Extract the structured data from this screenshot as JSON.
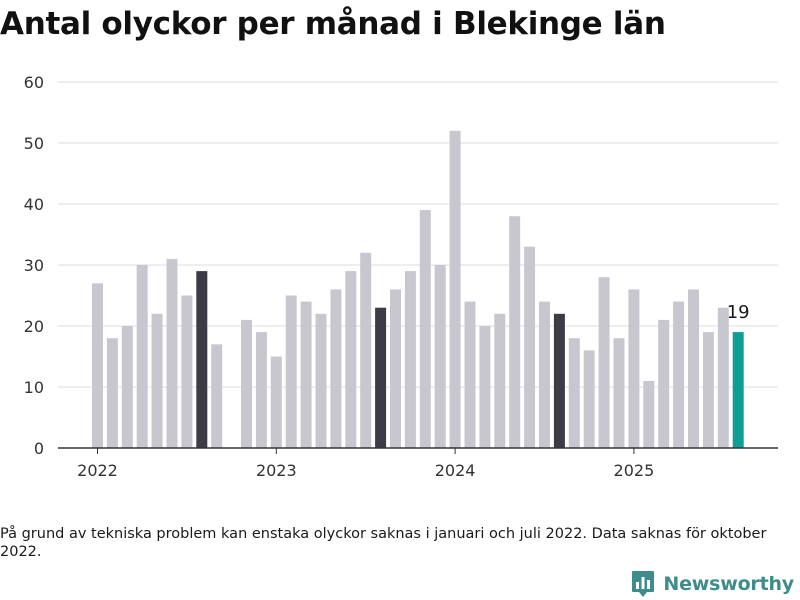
{
  "title": "Antal olyckor per månad i Blekinge län",
  "footnote": "På grund av tekniska problem kan enstaka olyckor saknas i januari och juli 2022. Data saknas för oktober 2022.",
  "brand": {
    "name": "Newsworthy",
    "icon": "bar-chart-logo-icon",
    "color": "#3e8d8a"
  },
  "chart_data": {
    "type": "bar",
    "title": "Antal olyckor per månad i Blekinge län",
    "xlabel": "",
    "ylabel": "",
    "ylim": [
      0,
      60
    ],
    "yticks": [
      0,
      10,
      20,
      30,
      40,
      50,
      60
    ],
    "grid": true,
    "legend": "none",
    "year_ticks": [
      {
        "label": "2022",
        "at": "2022-01"
      },
      {
        "label": "2023",
        "at": "2023-01"
      },
      {
        "label": "2024",
        "at": "2024-01"
      },
      {
        "label": "2025",
        "at": "2025-01"
      }
    ],
    "colors": {
      "default": "#c8c7d0",
      "august": "#3c3b46",
      "latest": "#0f9e96"
    },
    "data_labels": [
      {
        "month": "2025-08",
        "label": "19"
      }
    ],
    "bars": [
      {
        "month": "2022-01",
        "value": 27,
        "highlight": "default"
      },
      {
        "month": "2022-02",
        "value": 18,
        "highlight": "default"
      },
      {
        "month": "2022-03",
        "value": 20,
        "highlight": "default"
      },
      {
        "month": "2022-04",
        "value": 30,
        "highlight": "default"
      },
      {
        "month": "2022-05",
        "value": 22,
        "highlight": "default"
      },
      {
        "month": "2022-06",
        "value": 31,
        "highlight": "default"
      },
      {
        "month": "2022-07",
        "value": 25,
        "highlight": "default"
      },
      {
        "month": "2022-08",
        "value": 29,
        "highlight": "august"
      },
      {
        "month": "2022-09",
        "value": 17,
        "highlight": "default"
      },
      {
        "month": "2022-10",
        "value": null,
        "highlight": "default"
      },
      {
        "month": "2022-11",
        "value": 21,
        "highlight": "default"
      },
      {
        "month": "2022-12",
        "value": 19,
        "highlight": "default"
      },
      {
        "month": "2023-01",
        "value": 15,
        "highlight": "default"
      },
      {
        "month": "2023-02",
        "value": 25,
        "highlight": "default"
      },
      {
        "month": "2023-03",
        "value": 24,
        "highlight": "default"
      },
      {
        "month": "2023-04",
        "value": 22,
        "highlight": "default"
      },
      {
        "month": "2023-05",
        "value": 26,
        "highlight": "default"
      },
      {
        "month": "2023-06",
        "value": 29,
        "highlight": "default"
      },
      {
        "month": "2023-07",
        "value": 32,
        "highlight": "default"
      },
      {
        "month": "2023-08",
        "value": 23,
        "highlight": "august"
      },
      {
        "month": "2023-09",
        "value": 26,
        "highlight": "default"
      },
      {
        "month": "2023-10",
        "value": 29,
        "highlight": "default"
      },
      {
        "month": "2023-11",
        "value": 39,
        "highlight": "default"
      },
      {
        "month": "2023-12",
        "value": 30,
        "highlight": "default"
      },
      {
        "month": "2024-01",
        "value": 52,
        "highlight": "default"
      },
      {
        "month": "2024-02",
        "value": 24,
        "highlight": "default"
      },
      {
        "month": "2024-03",
        "value": 20,
        "highlight": "default"
      },
      {
        "month": "2024-04",
        "value": 22,
        "highlight": "default"
      },
      {
        "month": "2024-05",
        "value": 38,
        "highlight": "default"
      },
      {
        "month": "2024-06",
        "value": 33,
        "highlight": "default"
      },
      {
        "month": "2024-07",
        "value": 24,
        "highlight": "default"
      },
      {
        "month": "2024-08",
        "value": 22,
        "highlight": "august"
      },
      {
        "month": "2024-09",
        "value": 18,
        "highlight": "default"
      },
      {
        "month": "2024-10",
        "value": 16,
        "highlight": "default"
      },
      {
        "month": "2024-11",
        "value": 28,
        "highlight": "default"
      },
      {
        "month": "2024-12",
        "value": 18,
        "highlight": "default"
      },
      {
        "month": "2025-01",
        "value": 26,
        "highlight": "default"
      },
      {
        "month": "2025-02",
        "value": 11,
        "highlight": "default"
      },
      {
        "month": "2025-03",
        "value": 21,
        "highlight": "default"
      },
      {
        "month": "2025-04",
        "value": 24,
        "highlight": "default"
      },
      {
        "month": "2025-05",
        "value": 26,
        "highlight": "default"
      },
      {
        "month": "2025-06",
        "value": 19,
        "highlight": "default"
      },
      {
        "month": "2025-07",
        "value": 23,
        "highlight": "default"
      },
      {
        "month": "2025-08",
        "value": 19,
        "highlight": "latest"
      }
    ]
  }
}
